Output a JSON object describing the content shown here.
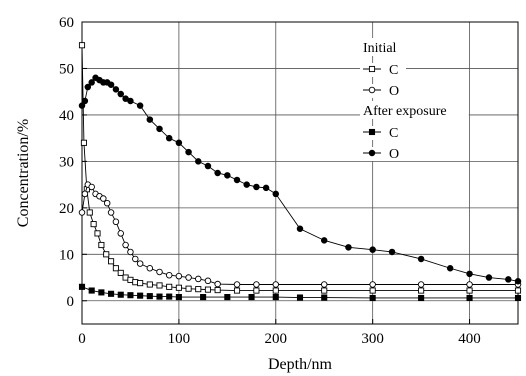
{
  "chart_data": {
    "type": "line",
    "title": "",
    "xlabel": "Depth/nm",
    "ylabel": "Concentration/%",
    "xlim": [
      0,
      450
    ],
    "ylim": [
      -5,
      60
    ],
    "xticks": [
      0,
      100,
      200,
      300,
      400
    ],
    "yticks": [
      0,
      10,
      20,
      30,
      40,
      50,
      60
    ],
    "grid": true,
    "legend_position": "top-right",
    "legend_groups": [
      {
        "label": "Initial",
        "series": [
          "C",
          "O"
        ]
      },
      {
        "label": "After exposure",
        "series": [
          "C",
          "O"
        ]
      }
    ],
    "series": [
      {
        "name": "C",
        "group": "Initial",
        "marker": "open-square",
        "color": "#000000",
        "x": [
          0,
          2,
          5,
          8,
          12,
          16,
          20,
          25,
          30,
          35,
          40,
          45,
          50,
          55,
          60,
          70,
          80,
          90,
          100,
          110,
          120,
          130,
          140,
          160,
          180,
          200,
          250,
          300,
          350,
          400,
          450
        ],
        "y": [
          55.0,
          34.0,
          24.0,
          19.0,
          16.5,
          14.5,
          12.0,
          10.0,
          8.5,
          7.0,
          6.0,
          5.0,
          4.5,
          4.0,
          3.8,
          3.5,
          3.3,
          3.0,
          2.8,
          2.6,
          2.5,
          2.4,
          2.3,
          2.2,
          2.2,
          2.2,
          2.2,
          2.2,
          2.2,
          2.2,
          2.2
        ]
      },
      {
        "name": "O",
        "group": "Initial",
        "marker": "open-circle",
        "color": "#000000",
        "x": [
          0,
          3,
          6,
          10,
          14,
          18,
          22,
          26,
          30,
          35,
          40,
          45,
          50,
          55,
          60,
          70,
          80,
          90,
          100,
          110,
          120,
          130,
          140,
          160,
          180,
          200,
          250,
          300,
          350,
          400,
          450
        ],
        "y": [
          19.0,
          23.0,
          25.0,
          24.5,
          23.0,
          22.5,
          22.0,
          21.0,
          19.0,
          17.0,
          14.5,
          12.0,
          10.5,
          9.0,
          8.0,
          7.0,
          6.2,
          5.5,
          5.3,
          5.0,
          4.7,
          4.3,
          3.6,
          3.5,
          3.5,
          3.5,
          3.5,
          3.5,
          3.5,
          3.5,
          3.5
        ]
      },
      {
        "name": "C",
        "group": "After exposure",
        "marker": "filled-square",
        "color": "#000000",
        "x": [
          0,
          10,
          20,
          30,
          40,
          50,
          60,
          70,
          80,
          90,
          100,
          125,
          150,
          175,
          200,
          225,
          250,
          300,
          350,
          400,
          450
        ],
        "y": [
          3.0,
          2.2,
          1.8,
          1.5,
          1.3,
          1.2,
          1.1,
          1.0,
          0.9,
          0.9,
          0.8,
          0.8,
          0.8,
          0.8,
          0.8,
          0.7,
          0.7,
          0.6,
          0.6,
          0.6,
          0.6
        ]
      },
      {
        "name": "O",
        "group": "After exposure",
        "marker": "filled-circle",
        "color": "#000000",
        "x": [
          0,
          3,
          6,
          10,
          14,
          18,
          22,
          26,
          30,
          35,
          40,
          45,
          50,
          60,
          70,
          80,
          90,
          100,
          110,
          120,
          130,
          140,
          150,
          160,
          170,
          180,
          190,
          200,
          225,
          250,
          275,
          300,
          320,
          350,
          380,
          400,
          420,
          440,
          450
        ],
        "y": [
          42.0,
          43.0,
          46.0,
          47.0,
          48.0,
          47.5,
          47.0,
          47.0,
          46.5,
          45.5,
          44.5,
          43.5,
          43.0,
          42.0,
          39.0,
          37.0,
          35.0,
          34.0,
          32.0,
          30.0,
          29.0,
          27.5,
          27.0,
          26.0,
          25.0,
          24.5,
          24.3,
          23.0,
          15.5,
          13.0,
          11.5,
          11.0,
          10.5,
          9.0,
          7.0,
          5.8,
          5.0,
          4.6,
          4.2
        ]
      }
    ]
  }
}
